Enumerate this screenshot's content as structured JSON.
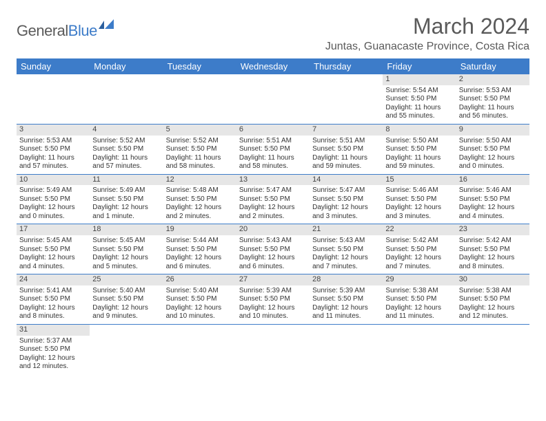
{
  "brand": {
    "part1": "General",
    "part2": "Blue"
  },
  "title": "March 2024",
  "location": "Juntas, Guanacaste Province, Costa Rica",
  "header_bg": "#3d7cc9",
  "day_headers": [
    "Sunday",
    "Monday",
    "Tuesday",
    "Wednesday",
    "Thursday",
    "Friday",
    "Saturday"
  ],
  "weeks": [
    [
      null,
      null,
      null,
      null,
      null,
      {
        "n": "1",
        "sr": "Sunrise: 5:54 AM",
        "ss": "Sunset: 5:50 PM",
        "dl": "Daylight: 11 hours and 55 minutes."
      },
      {
        "n": "2",
        "sr": "Sunrise: 5:53 AM",
        "ss": "Sunset: 5:50 PM",
        "dl": "Daylight: 11 hours and 56 minutes."
      }
    ],
    [
      {
        "n": "3",
        "sr": "Sunrise: 5:53 AM",
        "ss": "Sunset: 5:50 PM",
        "dl": "Daylight: 11 hours and 57 minutes."
      },
      {
        "n": "4",
        "sr": "Sunrise: 5:52 AM",
        "ss": "Sunset: 5:50 PM",
        "dl": "Daylight: 11 hours and 57 minutes."
      },
      {
        "n": "5",
        "sr": "Sunrise: 5:52 AM",
        "ss": "Sunset: 5:50 PM",
        "dl": "Daylight: 11 hours and 58 minutes."
      },
      {
        "n": "6",
        "sr": "Sunrise: 5:51 AM",
        "ss": "Sunset: 5:50 PM",
        "dl": "Daylight: 11 hours and 58 minutes."
      },
      {
        "n": "7",
        "sr": "Sunrise: 5:51 AM",
        "ss": "Sunset: 5:50 PM",
        "dl": "Daylight: 11 hours and 59 minutes."
      },
      {
        "n": "8",
        "sr": "Sunrise: 5:50 AM",
        "ss": "Sunset: 5:50 PM",
        "dl": "Daylight: 11 hours and 59 minutes."
      },
      {
        "n": "9",
        "sr": "Sunrise: 5:50 AM",
        "ss": "Sunset: 5:50 PM",
        "dl": "Daylight: 12 hours and 0 minutes."
      }
    ],
    [
      {
        "n": "10",
        "sr": "Sunrise: 5:49 AM",
        "ss": "Sunset: 5:50 PM",
        "dl": "Daylight: 12 hours and 0 minutes."
      },
      {
        "n": "11",
        "sr": "Sunrise: 5:49 AM",
        "ss": "Sunset: 5:50 PM",
        "dl": "Daylight: 12 hours and 1 minute."
      },
      {
        "n": "12",
        "sr": "Sunrise: 5:48 AM",
        "ss": "Sunset: 5:50 PM",
        "dl": "Daylight: 12 hours and 2 minutes."
      },
      {
        "n": "13",
        "sr": "Sunrise: 5:47 AM",
        "ss": "Sunset: 5:50 PM",
        "dl": "Daylight: 12 hours and 2 minutes."
      },
      {
        "n": "14",
        "sr": "Sunrise: 5:47 AM",
        "ss": "Sunset: 5:50 PM",
        "dl": "Daylight: 12 hours and 3 minutes."
      },
      {
        "n": "15",
        "sr": "Sunrise: 5:46 AM",
        "ss": "Sunset: 5:50 PM",
        "dl": "Daylight: 12 hours and 3 minutes."
      },
      {
        "n": "16",
        "sr": "Sunrise: 5:46 AM",
        "ss": "Sunset: 5:50 PM",
        "dl": "Daylight: 12 hours and 4 minutes."
      }
    ],
    [
      {
        "n": "17",
        "sr": "Sunrise: 5:45 AM",
        "ss": "Sunset: 5:50 PM",
        "dl": "Daylight: 12 hours and 4 minutes."
      },
      {
        "n": "18",
        "sr": "Sunrise: 5:45 AM",
        "ss": "Sunset: 5:50 PM",
        "dl": "Daylight: 12 hours and 5 minutes."
      },
      {
        "n": "19",
        "sr": "Sunrise: 5:44 AM",
        "ss": "Sunset: 5:50 PM",
        "dl": "Daylight: 12 hours and 6 minutes."
      },
      {
        "n": "20",
        "sr": "Sunrise: 5:43 AM",
        "ss": "Sunset: 5:50 PM",
        "dl": "Daylight: 12 hours and 6 minutes."
      },
      {
        "n": "21",
        "sr": "Sunrise: 5:43 AM",
        "ss": "Sunset: 5:50 PM",
        "dl": "Daylight: 12 hours and 7 minutes."
      },
      {
        "n": "22",
        "sr": "Sunrise: 5:42 AM",
        "ss": "Sunset: 5:50 PM",
        "dl": "Daylight: 12 hours and 7 minutes."
      },
      {
        "n": "23",
        "sr": "Sunrise: 5:42 AM",
        "ss": "Sunset: 5:50 PM",
        "dl": "Daylight: 12 hours and 8 minutes."
      }
    ],
    [
      {
        "n": "24",
        "sr": "Sunrise: 5:41 AM",
        "ss": "Sunset: 5:50 PM",
        "dl": "Daylight: 12 hours and 8 minutes."
      },
      {
        "n": "25",
        "sr": "Sunrise: 5:40 AM",
        "ss": "Sunset: 5:50 PM",
        "dl": "Daylight: 12 hours and 9 minutes."
      },
      {
        "n": "26",
        "sr": "Sunrise: 5:40 AM",
        "ss": "Sunset: 5:50 PM",
        "dl": "Daylight: 12 hours and 10 minutes."
      },
      {
        "n": "27",
        "sr": "Sunrise: 5:39 AM",
        "ss": "Sunset: 5:50 PM",
        "dl": "Daylight: 12 hours and 10 minutes."
      },
      {
        "n": "28",
        "sr": "Sunrise: 5:39 AM",
        "ss": "Sunset: 5:50 PM",
        "dl": "Daylight: 12 hours and 11 minutes."
      },
      {
        "n": "29",
        "sr": "Sunrise: 5:38 AM",
        "ss": "Sunset: 5:50 PM",
        "dl": "Daylight: 12 hours and 11 minutes."
      },
      {
        "n": "30",
        "sr": "Sunrise: 5:38 AM",
        "ss": "Sunset: 5:50 PM",
        "dl": "Daylight: 12 hours and 12 minutes."
      }
    ],
    [
      {
        "n": "31",
        "sr": "Sunrise: 5:37 AM",
        "ss": "Sunset: 5:50 PM",
        "dl": "Daylight: 12 hours and 12 minutes."
      },
      null,
      null,
      null,
      null,
      null,
      null
    ]
  ]
}
